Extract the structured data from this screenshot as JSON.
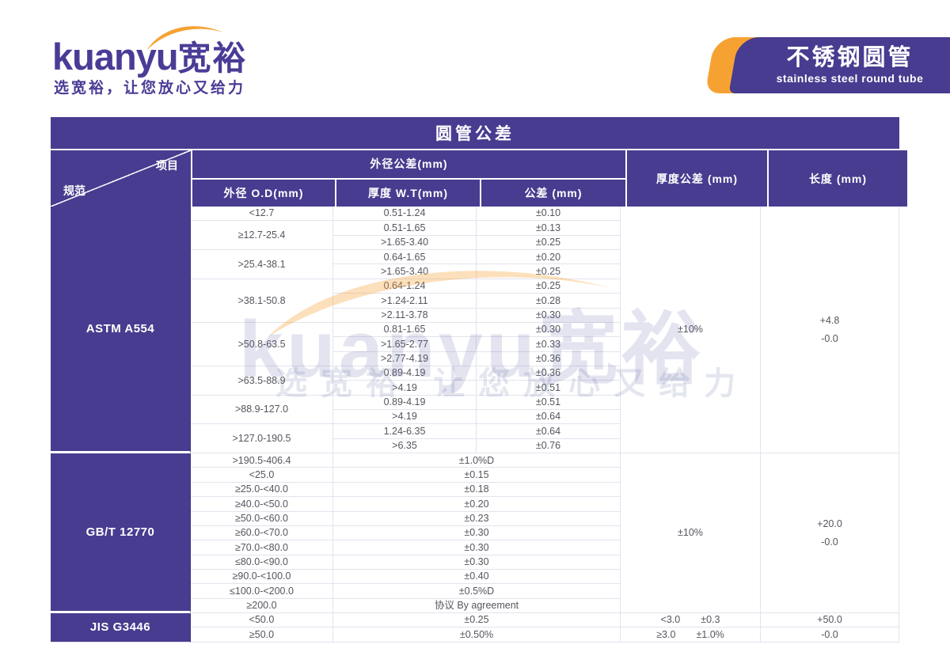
{
  "colors": {
    "purple": "#473c8f",
    "orange": "#f6a233",
    "border": "#e3e3ee",
    "text": "#55555e"
  },
  "brand": {
    "logo_latin": "kuanyu",
    "logo_cjk": "宽裕",
    "tagline": "选宽裕，让您放心又给力"
  },
  "banner": {
    "title": "不锈钢圆管",
    "subtitle": "stainless steel round tube"
  },
  "watermark": {
    "logo": "kuanyu宽裕",
    "tagline": "选宽裕 让您放心又给力"
  },
  "table": {
    "title": "圆管公差",
    "header": {
      "diagonal_top": "项目",
      "diagonal_bottom": "规范",
      "od_group": "外径公差(mm)",
      "col_od": "外径 O.D(mm)",
      "col_wt": "厚度 W.T(mm)",
      "col_tol": "公差 (mm)",
      "col_thickness_tol": "厚度公差 (mm)",
      "col_length": "长度 (mm)"
    },
    "sections": [
      {
        "spec": "ASTM A554",
        "thickness_tol": "±10%",
        "length_lines": [
          "+4.8",
          "-0.0"
        ],
        "od_groups": [
          {
            "od": "<12.7",
            "rows": [
              [
                "0.51-1.24",
                "±0.10"
              ]
            ]
          },
          {
            "od": "≥12.7-25.4",
            "rows": [
              [
                "0.51-1.65",
                "±0.13"
              ],
              [
                ">1.65-3.40",
                "±0.25"
              ]
            ]
          },
          {
            "od": ">25.4-38.1",
            "rows": [
              [
                "0.64-1.65",
                "±0.20"
              ],
              [
                ">1.65-3.40",
                "±0.25"
              ]
            ]
          },
          {
            "od": ">38.1-50.8",
            "rows": [
              [
                "0.64-1.24",
                "±0.25"
              ],
              [
                ">1.24-2.11",
                "±0.28"
              ],
              [
                ">2.11-3.78",
                "±0.30"
              ]
            ]
          },
          {
            "od": ">50.8-63.5",
            "rows": [
              [
                "0.81-1.65",
                "±0.30"
              ],
              [
                ">1.65-2.77",
                "±0.33"
              ],
              [
                ">2.77-4.19",
                "±0.36"
              ]
            ]
          },
          {
            "od": ">63.5-88.9",
            "rows": [
              [
                "0.89-4.19",
                "±0.36"
              ],
              [
                ">4.19",
                "±0.51"
              ]
            ]
          },
          {
            "od": ">88.9-127.0",
            "rows": [
              [
                "0.89-4.19",
                "±0.51"
              ],
              [
                ">4.19",
                "±0.64"
              ]
            ]
          },
          {
            "od": ">127.0-190.5",
            "rows": [
              [
                "1.24-6.35",
                "±0.64"
              ],
              [
                ">6.35",
                "±0.76"
              ]
            ]
          }
        ]
      },
      {
        "spec": "GB/T 12770",
        "thickness_tol": "±10%",
        "length_lines": [
          "+20.0",
          "-0.0"
        ],
        "merged_rows": [
          {
            "od": ">190.5-406.4",
            "tol": "±1.0%D"
          },
          {
            "od": "<25.0",
            "tol": "±0.15"
          },
          {
            "od": "≥25.0-<40.0",
            "tol": "±0.18"
          },
          {
            "od": "≥40.0-<50.0",
            "tol": "±0.20"
          },
          {
            "od": "≥50.0-<60.0",
            "tol": "±0.23"
          },
          {
            "od": "≥60.0-<70.0",
            "tol": "±0.30"
          },
          {
            "od": "≥70.0-<80.0",
            "tol": "±0.30"
          },
          {
            "od": "≤80.0-<90.0",
            "tol": "±0.30"
          },
          {
            "od": "≥90.0-<100.0",
            "tol": "±0.40"
          },
          {
            "od": "≤100.0-<200.0",
            "tol": "±0.5%D"
          },
          {
            "od": "≥200.0",
            "tol": "协议 By agreement"
          }
        ]
      },
      {
        "spec": "JIS G3446",
        "jis_rows": [
          {
            "od": "<50.0",
            "tol": "±0.25",
            "thick": [
              "<3.0",
              "±0.3"
            ],
            "length": "+50.0"
          },
          {
            "od": "≥50.0",
            "tol": "±0.50%",
            "thick": [
              "≥3.0",
              "±1.0%"
            ],
            "length": "-0.0"
          }
        ]
      }
    ]
  }
}
